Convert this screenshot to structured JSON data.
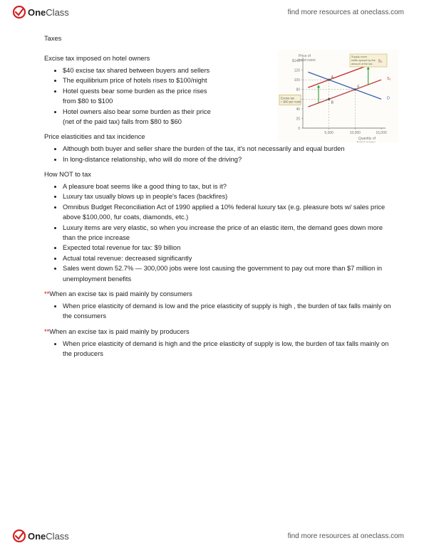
{
  "brand": {
    "logo_part1": "One",
    "logo_part2": "Class",
    "tagline": "find more resources at oneclass.com"
  },
  "title": "Taxes",
  "sections": [
    {
      "heading": "Excise tax imposed on hotel owners",
      "narrow": true,
      "bullets": [
        "$40 excise tax shared between buyers and sellers",
        "The equilibrium price of hotels rises to $100/night",
        "Hotel quests bear some burden as the price rises from $80 to $100",
        "Hotel owners also bear some burden as their price (net of the paid tax) falls from $80 to $60"
      ]
    },
    {
      "heading": "Price elasticities and tax incidence",
      "bullets": [
        "Although both buyer and seller share the burden of the tax, it's not necessarily and equal burden",
        "In long-distance relationship, who will do more of the driving?"
      ]
    },
    {
      "heading": "How NOT to tax",
      "bullets": [
        "A pleasure boat seems like a good thing to tax, but is it?",
        "Luxury tax usually blows up in people's faces (backfires)",
        "Omnibus Budget Reconciliation Act of 1990 applied a 10% federal luxury tax (e.g. pleasure bots w/ sales price above $100,000, fur coats, diamonds, etc.)",
        "Luxury items are very elastic, so when you increase the price of an elastic item, the demand goes down more than the price increase",
        "Expected total revenue for tax: $9 billion",
        "Actual total revenue: decreased significantly",
        "Sales went down 52.7% — 300,000 jobs were lost causing the government to pay out more than $7 million in unemployment benefits"
      ]
    },
    {
      "heading": "**When an excise tax is paid mainly by consumers",
      "marker": true,
      "bullets": [
        "When price elasticity of demand is low and the price elasticity of supply is high , the burden of tax falls mainly on the consumers"
      ]
    },
    {
      "heading": "**When an excise tax is paid mainly by producers",
      "marker": true,
      "bullets": [
        "When price elasticity of demand is high and the price elasticity of supply is low, the burden of tax falls mainly on the producers"
      ]
    }
  ],
  "chart": {
    "title_line1": "Price of",
    "title_line2": "hotel room",
    "note_line1": "Supply curve",
    "note_line2": "shifts upward by the",
    "note_line3": "amount of the tax.",
    "tax_label_line1": "Excise tax",
    "tax_label_line2": "= $40 per room",
    "y_ticks": [
      "$140",
      "120",
      "100",
      "80",
      "60",
      "40",
      "20",
      "0"
    ],
    "x_ticks": [
      "5,000",
      "10,000",
      "15,000"
    ],
    "x_label_line1": "Quantity of",
    "x_label_line2": "hotel rooms",
    "supply1_label": "S₁",
    "supply2_label": "S₂",
    "demand_label": "D",
    "colors": {
      "axis": "#888888",
      "grid": "#dddddd",
      "supply1": "#b84040",
      "supply2": "#c23030",
      "demand": "#3a5fb0",
      "arrow": "#2aa030",
      "tax_box_border": "#bba850",
      "tax_box_fill": "#f6f0d8",
      "dash": "#999999",
      "point": "#555555",
      "bg": "#fdfcf8"
    }
  }
}
